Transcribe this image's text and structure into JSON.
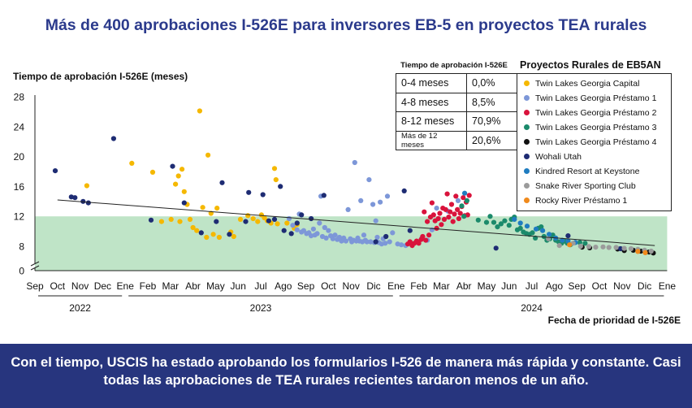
{
  "title": "Más de 400 aprobaciones I-526E para inversores EB-5 en proyectos TEA rurales",
  "footer": "Con el tiempo, USCIS ha estado aprobando los formularios I-526 de manera más rápida y constante. Casi todas las aprobaciones de TEA rurales recientes tardaron menos de un año.",
  "colors": {
    "accent": "#2b3a8c",
    "footer_bg": "#27357e",
    "band": "#bfe4c7",
    "trend": "#222222"
  },
  "approval_table": {
    "title": "Tiempo de aprobación I-526E",
    "rows": [
      {
        "label": "0-4 meses",
        "value": "0,0%"
      },
      {
        "label": "4-8 meses",
        "value": "8,5%"
      },
      {
        "label": "8-12 meses",
        "value": "70,9%"
      },
      {
        "label": "Más de 12 meses",
        "value": "20,6%"
      }
    ]
  },
  "chart_data": {
    "type": "scatter",
    "ylabel": "Tiempo de aprobación I-526E (meses)",
    "xlabel": "Fecha de prioridad de I-526E",
    "yticks": [
      "0",
      "8",
      "12",
      "16",
      "20",
      "24",
      "28"
    ],
    "ylim": [
      0,
      28
    ],
    "xlim": [
      "2022-09",
      "2025-01"
    ],
    "xticks": [
      "Sep",
      "Oct",
      "Nov",
      "Dec",
      "Ene",
      "Feb",
      "Mar",
      "Abr",
      "May",
      "Jun",
      "Jul",
      "Ago",
      "Sep",
      "Oct",
      "Nov",
      "Dic",
      "Ene",
      "Feb",
      "Mar",
      "Abr",
      "May",
      "Jun",
      "Jul",
      "Ago",
      "Sep",
      "Oct",
      "Nov",
      "Dic",
      "Ene"
    ],
    "years": [
      {
        "label": "2022",
        "from": "2022-09",
        "to": "2023-01"
      },
      {
        "label": "2023",
        "from": "2023-01",
        "to": "2024-01"
      },
      {
        "label": "2024",
        "from": "2024-01",
        "to": "2025-01"
      }
    ],
    "band": [
      0,
      12
    ],
    "trend": [
      {
        "x": "2022-10-01",
        "y": 14.2
      },
      {
        "x": "2024-12-15",
        "y": 8.1
      }
    ],
    "axis_break": true,
    "legend_title": "Proyectos Rurales de EB5AN",
    "series": [
      {
        "name": "Twin Lakes Georgia Capital",
        "color": "#f5b800",
        "points": [
          [
            "2022-11-10",
            16.1
          ],
          [
            "2023-01-10",
            19.1
          ],
          [
            "2023-02-07",
            17.9
          ],
          [
            "2023-02-18",
            11.3
          ],
          [
            "2023-03-02",
            11.6
          ],
          [
            "2023-03-08",
            16.3
          ],
          [
            "2023-03-12",
            17.4
          ],
          [
            "2023-03-14",
            11.3
          ],
          [
            "2023-03-17",
            18.3
          ],
          [
            "2023-03-20",
            15.3
          ],
          [
            "2023-03-24",
            13.6
          ],
          [
            "2023-03-28",
            11.6
          ],
          [
            "2023-04-01",
            10.5
          ],
          [
            "2023-04-06",
            10.1
          ],
          [
            "2023-04-10",
            26.1
          ],
          [
            "2023-04-14",
            13.2
          ],
          [
            "2023-04-19",
            9.2
          ],
          [
            "2023-04-21",
            20.2
          ],
          [
            "2023-04-25",
            12.4
          ],
          [
            "2023-04-28",
            9.6
          ],
          [
            "2023-05-03",
            13.1
          ],
          [
            "2023-05-06",
            9.2
          ],
          [
            "2023-05-22",
            9.9
          ],
          [
            "2023-05-26",
            9.3
          ],
          [
            "2023-06-04",
            11.6
          ],
          [
            "2023-06-14",
            12.1
          ],
          [
            "2023-06-21",
            11.7
          ],
          [
            "2023-06-27",
            11.3
          ],
          [
            "2023-07-02",
            12.2
          ],
          [
            "2023-07-06",
            11.8
          ],
          [
            "2023-07-10",
            11.4
          ],
          [
            "2023-07-15",
            11.1
          ],
          [
            "2023-07-20",
            18.4
          ],
          [
            "2023-07-22",
            16.9
          ],
          [
            "2023-07-24",
            11.0
          ],
          [
            "2023-08-06",
            11.1
          ],
          [
            "2023-08-16",
            10.4
          ],
          [
            "2023-08-20",
            10.9
          ]
        ]
      },
      {
        "name": "Twin Lakes Georgia Préstamo 1",
        "color": "#7d97d8",
        "points": [
          [
            "2023-08-09",
            11.7
          ],
          [
            "2023-08-14",
            10.8
          ],
          [
            "2023-08-20",
            10.2
          ],
          [
            "2023-08-23",
            12.3
          ],
          [
            "2023-08-26",
            9.9
          ],
          [
            "2023-08-29",
            10.1
          ],
          [
            "2023-09-02",
            9.7
          ],
          [
            "2023-09-05",
            9.8
          ],
          [
            "2023-09-08",
            9.4
          ],
          [
            "2023-09-11",
            10.3
          ],
          [
            "2023-09-13",
            9.5
          ],
          [
            "2023-09-16",
            9.7
          ],
          [
            "2023-09-19",
            11.1
          ],
          [
            "2023-09-21",
            14.7
          ],
          [
            "2023-09-23",
            9.3
          ],
          [
            "2023-09-26",
            10.5
          ],
          [
            "2023-09-28",
            9.1
          ],
          [
            "2023-10-01",
            10.1
          ],
          [
            "2023-10-04",
            9.4
          ],
          [
            "2023-10-07",
            9.0
          ],
          [
            "2023-10-10",
            9.5
          ],
          [
            "2023-10-13",
            8.9
          ],
          [
            "2023-10-16",
            9.2
          ],
          [
            "2023-10-19",
            8.7
          ],
          [
            "2023-10-22",
            9.1
          ],
          [
            "2023-10-25",
            8.7
          ],
          [
            "2023-10-28",
            12.9
          ],
          [
            "2023-10-31",
            9.0
          ],
          [
            "2023-11-02",
            8.6
          ],
          [
            "2023-11-04",
            8.8
          ],
          [
            "2023-11-06",
            19.2
          ],
          [
            "2023-11-08",
            8.7
          ],
          [
            "2023-11-10",
            9.1
          ],
          [
            "2023-11-12",
            8.7
          ],
          [
            "2023-11-14",
            14.1
          ],
          [
            "2023-11-16",
            8.6
          ],
          [
            "2023-11-18",
            9.5
          ],
          [
            "2023-11-20",
            8.8
          ],
          [
            "2023-11-22",
            8.6
          ],
          [
            "2023-11-25",
            16.9
          ],
          [
            "2023-11-27",
            8.6
          ],
          [
            "2023-11-30",
            13.6
          ],
          [
            "2023-12-02",
            8.5
          ],
          [
            "2023-12-04",
            11.4
          ],
          [
            "2023-12-06",
            9.2
          ],
          [
            "2023-12-08",
            8.5
          ],
          [
            "2023-12-10",
            13.9
          ],
          [
            "2023-12-12",
            8.3
          ],
          [
            "2023-12-14",
            9.0
          ],
          [
            "2023-12-17",
            8.4
          ],
          [
            "2023-12-20",
            14.7
          ],
          [
            "2023-12-23",
            8.6
          ],
          [
            "2023-12-27",
            9.8
          ],
          [
            "2024-01-03",
            8.3
          ],
          [
            "2024-01-08",
            8.2
          ],
          [
            "2024-01-14",
            8.1
          ],
          [
            "2024-02-05",
            9.1
          ],
          [
            "2024-02-12",
            8.8
          ],
          [
            "2024-02-18",
            10.2
          ],
          [
            "2024-02-24",
            13.1
          ],
          [
            "2024-03-10",
            12.7
          ],
          [
            "2024-03-24",
            14.1
          ]
        ]
      },
      {
        "name": "Twin Lakes Georgia Préstamo 2",
        "color": "#d9133c",
        "points": [
          [
            "2024-01-17",
            8.3
          ],
          [
            "2024-01-20",
            8.6
          ],
          [
            "2024-01-23",
            8.1
          ],
          [
            "2024-01-26",
            8.4
          ],
          [
            "2024-01-29",
            8.7
          ],
          [
            "2024-02-01",
            8.4
          ],
          [
            "2024-02-04",
            8.9
          ],
          [
            "2024-02-06",
            9.3
          ],
          [
            "2024-02-08",
            12.6
          ],
          [
            "2024-02-10",
            8.8
          ],
          [
            "2024-02-12",
            11.3
          ],
          [
            "2024-02-14",
            9.5
          ],
          [
            "2024-02-16",
            11.9
          ],
          [
            "2024-02-18",
            13.8
          ],
          [
            "2024-02-20",
            12.2
          ],
          [
            "2024-02-22",
            11.4
          ],
          [
            "2024-02-24",
            10.4
          ],
          [
            "2024-02-26",
            11.7
          ],
          [
            "2024-02-28",
            12.4
          ],
          [
            "2024-03-01",
            10.9
          ],
          [
            "2024-03-03",
            13.1
          ],
          [
            "2024-03-05",
            11.6
          ],
          [
            "2024-03-07",
            12.9
          ],
          [
            "2024-03-09",
            15.0
          ],
          [
            "2024-03-11",
            11.9
          ],
          [
            "2024-03-13",
            12.6
          ],
          [
            "2024-03-15",
            13.6
          ],
          [
            "2024-03-17",
            11.3
          ],
          [
            "2024-03-19",
            12.3
          ],
          [
            "2024-03-21",
            14.7
          ],
          [
            "2024-03-23",
            12.9
          ],
          [
            "2024-03-25",
            11.7
          ],
          [
            "2024-03-27",
            12.4
          ],
          [
            "2024-03-29",
            13.3
          ],
          [
            "2024-03-31",
            14.5
          ],
          [
            "2024-04-02",
            12.1
          ],
          [
            "2024-04-04",
            13.9
          ],
          [
            "2024-04-06",
            12.2
          ],
          [
            "2024-04-08",
            14.8
          ]
        ]
      },
      {
        "name": "Twin Lakes Georgia Préstamo 3",
        "color": "#1b8a6b",
        "points": [
          [
            "2024-03-29",
            13.4
          ],
          [
            "2024-04-01",
            12.0
          ],
          [
            "2024-04-05",
            14.1
          ],
          [
            "2024-04-20",
            11.5
          ],
          [
            "2024-05-01",
            11.2
          ],
          [
            "2024-05-06",
            12.0
          ],
          [
            "2024-05-11",
            11.2
          ],
          [
            "2024-05-16",
            10.6
          ],
          [
            "2024-05-21",
            11.0
          ],
          [
            "2024-05-26",
            11.4
          ],
          [
            "2024-06-01",
            10.8
          ],
          [
            "2024-06-04",
            11.6
          ],
          [
            "2024-06-08",
            11.9
          ],
          [
            "2024-06-12",
            10.2
          ],
          [
            "2024-06-16",
            10.4
          ],
          [
            "2024-06-20",
            9.9
          ],
          [
            "2024-06-24",
            9.7
          ],
          [
            "2024-06-28",
            9.6
          ],
          [
            "2024-07-02",
            9.8
          ],
          [
            "2024-07-06",
            9.1
          ],
          [
            "2024-07-10",
            10.4
          ],
          [
            "2024-07-14",
            10.6
          ],
          [
            "2024-07-18",
            9.3
          ],
          [
            "2024-07-22",
            8.8
          ],
          [
            "2024-07-26",
            9.0
          ],
          [
            "2024-07-30",
            9.5
          ],
          [
            "2024-08-03",
            8.8
          ],
          [
            "2024-08-07",
            8.6
          ],
          [
            "2024-08-11",
            8.4
          ],
          [
            "2024-08-15",
            8.7
          ],
          [
            "2024-08-19",
            8.4
          ],
          [
            "2024-08-23",
            8.2
          ],
          [
            "2024-09-05",
            8.5
          ],
          [
            "2024-09-12",
            8.4
          ]
        ]
      },
      {
        "name": "Twin Lakes Georgia Préstamo 4",
        "color": "#111111",
        "points": [
          [
            "2024-09-08",
            7.7
          ],
          [
            "2024-09-18",
            7.5
          ],
          [
            "2024-10-26",
            7.1
          ],
          [
            "2024-11-04",
            6.6
          ],
          [
            "2024-11-16",
            6.7
          ],
          [
            "2024-11-26",
            6.4
          ],
          [
            "2024-12-07",
            6.1
          ],
          [
            "2024-12-13",
            5.8
          ]
        ]
      },
      {
        "name": "Wohali Utah",
        "color": "#1e2c73",
        "points": [
          [
            "2022-09-28",
            18.1
          ],
          [
            "2022-10-20",
            14.6
          ],
          [
            "2022-10-25",
            14.5
          ],
          [
            "2022-11-05",
            14.0
          ],
          [
            "2022-11-12",
            13.8
          ],
          [
            "2022-12-16",
            22.4
          ],
          [
            "2023-02-05",
            11.5
          ],
          [
            "2023-03-04",
            18.7
          ],
          [
            "2023-03-20",
            13.8
          ],
          [
            "2023-04-12",
            9.8
          ],
          [
            "2023-05-02",
            11.3
          ],
          [
            "2023-05-10",
            16.5
          ],
          [
            "2023-05-20",
            9.6
          ],
          [
            "2023-06-11",
            11.3
          ],
          [
            "2023-06-15",
            15.2
          ],
          [
            "2023-07-04",
            14.9
          ],
          [
            "2023-07-12",
            11.4
          ],
          [
            "2023-07-20",
            11.6
          ],
          [
            "2023-07-28",
            16.0
          ],
          [
            "2023-08-02",
            10.1
          ],
          [
            "2023-08-12",
            9.7
          ],
          [
            "2023-08-20",
            11.1
          ],
          [
            "2023-08-26",
            12.2
          ],
          [
            "2023-09-08",
            11.7
          ],
          [
            "2023-09-25",
            14.8
          ],
          [
            "2023-12-04",
            8.6
          ],
          [
            "2023-12-18",
            9.3
          ],
          [
            "2024-01-12",
            15.4
          ],
          [
            "2024-01-20",
            10.1
          ],
          [
            "2024-05-14",
            7.4
          ],
          [
            "2024-08-20",
            9.4
          ],
          [
            "2024-10-30",
            7.2
          ]
        ]
      },
      {
        "name": "Kindred Resort at Keystone",
        "color": "#1f7cc0",
        "points": [
          [
            "2024-04-02",
            15.1
          ],
          [
            "2024-06-08",
            11.6
          ],
          [
            "2024-06-16",
            11.1
          ],
          [
            "2024-06-25",
            10.7
          ],
          [
            "2024-07-07",
            10.3
          ],
          [
            "2024-07-16",
            10.1
          ],
          [
            "2024-07-25",
            9.6
          ],
          [
            "2024-08-03",
            9.1
          ],
          [
            "2024-08-12",
            8.8
          ],
          [
            "2024-08-20",
            8.7
          ],
          [
            "2024-08-30",
            8.5
          ]
        ]
      },
      {
        "name": "Snake River Sporting Club",
        "color": "#9b9b9b",
        "points": [
          [
            "2024-07-24",
            9.0
          ],
          [
            "2024-08-08",
            8.1
          ],
          [
            "2024-08-27",
            8.4
          ],
          [
            "2024-09-06",
            8.0
          ],
          [
            "2024-09-17",
            7.9
          ],
          [
            "2024-09-26",
            7.7
          ],
          [
            "2024-10-06",
            7.8
          ],
          [
            "2024-10-14",
            7.6
          ],
          [
            "2024-10-24",
            7.6
          ],
          [
            "2024-11-04",
            7.3
          ],
          [
            "2024-11-13",
            7.2
          ],
          [
            "2024-11-22",
            7.0
          ],
          [
            "2024-12-01",
            6.7
          ],
          [
            "2024-12-10",
            6.4
          ]
        ]
      },
      {
        "name": "Rocky River Préstamo 1",
        "color": "#f08a1c",
        "points": [
          [
            "2024-08-22",
            8.2
          ],
          [
            "2024-11-22",
            6.3
          ],
          [
            "2024-12-02",
            5.9
          ]
        ]
      }
    ]
  }
}
